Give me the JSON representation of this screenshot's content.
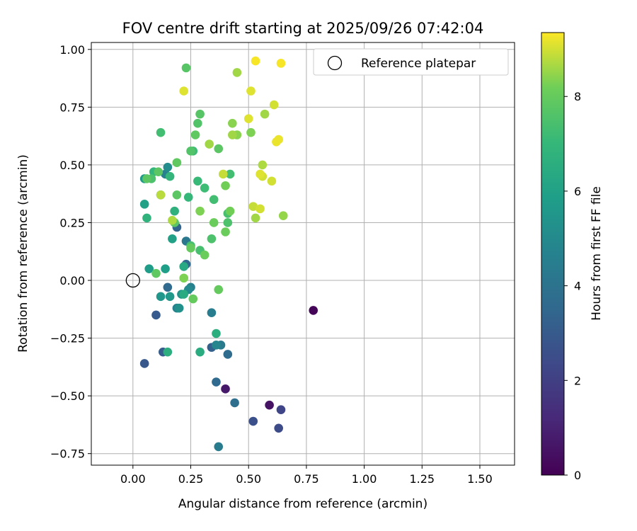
{
  "chart_data": {
    "type": "scatter",
    "title": "FOV centre drift starting at 2025/09/26 07:42:04",
    "xlabel": "Angular distance from reference (arcmin)",
    "ylabel": "Rotation from reference (arcmin)",
    "xlim": [
      -0.18,
      1.65
    ],
    "ylim": [
      -0.8,
      1.03
    ],
    "xticks": [
      0.0,
      0.25,
      0.5,
      0.75,
      1.0,
      1.25,
      1.5
    ],
    "xtick_labels": [
      "0.00",
      "0.25",
      "0.50",
      "0.75",
      "1.00",
      "1.25",
      "1.50"
    ],
    "yticks": [
      -0.75,
      -0.5,
      -0.25,
      0.0,
      0.25,
      0.5,
      0.75,
      1.0
    ],
    "ytick_labels": [
      "−0.75",
      "−0.50",
      "−0.25",
      "0.00",
      "0.25",
      "0.50",
      "0.75",
      "1.00"
    ],
    "grid": true,
    "legend": {
      "position": "top-right",
      "entries": [
        "Reference platepar"
      ]
    },
    "reference_point": {
      "x": 0.0,
      "y": 0.0,
      "label": "Reference platepar"
    },
    "colorbar": {
      "label": "Hours from first FF file",
      "colormap": "viridis",
      "range": [
        0,
        9.35
      ],
      "ticks": [
        0,
        2,
        4,
        6,
        8
      ],
      "tick_labels": [
        "0",
        "2",
        "4",
        "6",
        "8"
      ]
    },
    "points": [
      {
        "x": 0.78,
        "y": -0.13,
        "c": 0.1
      },
      {
        "x": 0.59,
        "y": -0.54,
        "c": 0.5
      },
      {
        "x": 0.4,
        "y": -0.47,
        "c": 0.7
      },
      {
        "x": 0.64,
        "y": -0.56,
        "c": 2.2
      },
      {
        "x": 0.63,
        "y": -0.64,
        "c": 2.4
      },
      {
        "x": 0.52,
        "y": -0.61,
        "c": 2.6
      },
      {
        "x": 0.05,
        "y": -0.36,
        "c": 2.9
      },
      {
        "x": 0.1,
        "y": -0.15,
        "c": 3.0
      },
      {
        "x": 0.13,
        "y": -0.31,
        "c": 3.1
      },
      {
        "x": 0.34,
        "y": -0.29,
        "c": 3.2
      },
      {
        "x": 0.19,
        "y": 0.23,
        "c": 3.4
      },
      {
        "x": 0.23,
        "y": 0.07,
        "c": 3.5
      },
      {
        "x": 0.15,
        "y": -0.03,
        "c": 3.6
      },
      {
        "x": 0.36,
        "y": -0.44,
        "c": 3.6
      },
      {
        "x": 0.41,
        "y": -0.32,
        "c": 3.7
      },
      {
        "x": 0.44,
        "y": -0.53,
        "c": 3.8
      },
      {
        "x": 0.23,
        "y": 0.17,
        "c": 4.2
      },
      {
        "x": 0.38,
        "y": -0.28,
        "c": 4.3
      },
      {
        "x": 0.37,
        "y": -0.72,
        "c": 4.4
      },
      {
        "x": 0.34,
        "y": -0.14,
        "c": 4.5
      },
      {
        "x": 0.14,
        "y": 0.46,
        "c": 4.6
      },
      {
        "x": 0.25,
        "y": -0.03,
        "c": 4.6
      },
      {
        "x": 0.19,
        "y": -0.12,
        "c": 4.7
      },
      {
        "x": 0.36,
        "y": -0.28,
        "c": 4.9
      },
      {
        "x": 0.24,
        "y": -0.04,
        "c": 5.0
      },
      {
        "x": 0.15,
        "y": 0.49,
        "c": 5.1
      },
      {
        "x": 0.2,
        "y": -0.12,
        "c": 5.3
      },
      {
        "x": 0.21,
        "y": -0.06,
        "c": 5.4
      },
      {
        "x": 0.12,
        "y": -0.07,
        "c": 5.5
      },
      {
        "x": 0.16,
        "y": -0.07,
        "c": 5.6
      },
      {
        "x": 0.05,
        "y": 0.44,
        "c": 5.7
      },
      {
        "x": 0.12,
        "y": 0.37,
        "c": 5.8
      },
      {
        "x": 0.07,
        "y": 0.05,
        "c": 5.8
      },
      {
        "x": 0.14,
        "y": 0.05,
        "c": 5.9
      },
      {
        "x": 0.17,
        "y": 0.18,
        "c": 6.0
      },
      {
        "x": 0.05,
        "y": 0.33,
        "c": 6.0
      },
      {
        "x": 0.22,
        "y": 0.06,
        "c": 6.3
      },
      {
        "x": 0.22,
        "y": -0.06,
        "c": 6.4
      },
      {
        "x": 0.29,
        "y": -0.31,
        "c": 6.5
      },
      {
        "x": 0.15,
        "y": -0.31,
        "c": 6.6
      },
      {
        "x": 0.36,
        "y": -0.23,
        "c": 6.6
      },
      {
        "x": 0.18,
        "y": 0.3,
        "c": 6.7
      },
      {
        "x": 0.06,
        "y": 0.27,
        "c": 6.8
      },
      {
        "x": 0.16,
        "y": 0.45,
        "c": 6.9
      },
      {
        "x": 0.09,
        "y": 0.47,
        "c": 6.9
      },
      {
        "x": 0.24,
        "y": 0.36,
        "c": 7.0
      },
      {
        "x": 0.28,
        "y": 0.43,
        "c": 7.1
      },
      {
        "x": 0.31,
        "y": 0.4,
        "c": 7.2
      },
      {
        "x": 0.26,
        "y": 0.56,
        "c": 7.2
      },
      {
        "x": 0.35,
        "y": 0.35,
        "c": 7.3
      },
      {
        "x": 0.42,
        "y": 0.46,
        "c": 7.3
      },
      {
        "x": 0.12,
        "y": 0.64,
        "c": 7.3
      },
      {
        "x": 0.25,
        "y": 0.15,
        "c": 7.4
      },
      {
        "x": 0.29,
        "y": 0.13,
        "c": 7.4
      },
      {
        "x": 0.41,
        "y": 0.29,
        "c": 7.4
      },
      {
        "x": 0.41,
        "y": 0.25,
        "c": 7.5
      },
      {
        "x": 0.08,
        "y": 0.44,
        "c": 7.5
      },
      {
        "x": 0.34,
        "y": 0.18,
        "c": 7.5
      },
      {
        "x": 0.25,
        "y": 0.56,
        "c": 7.6
      },
      {
        "x": 0.28,
        "y": 0.68,
        "c": 7.6
      },
      {
        "x": 0.29,
        "y": 0.72,
        "c": 7.7
      },
      {
        "x": 0.23,
        "y": 0.92,
        "c": 7.7
      },
      {
        "x": 0.19,
        "y": 0.37,
        "c": 7.8
      },
      {
        "x": 0.18,
        "y": 0.25,
        "c": 7.8
      },
      {
        "x": 0.06,
        "y": 0.44,
        "c": 7.8
      },
      {
        "x": 0.11,
        "y": 0.47,
        "c": 7.8
      },
      {
        "x": 0.37,
        "y": 0.57,
        "c": 7.8
      },
      {
        "x": 0.27,
        "y": 0.63,
        "c": 7.9
      },
      {
        "x": 0.19,
        "y": 0.51,
        "c": 7.9
      },
      {
        "x": 0.1,
        "y": 0.03,
        "c": 7.9
      },
      {
        "x": 0.25,
        "y": 0.14,
        "c": 8.0
      },
      {
        "x": 0.26,
        "y": -0.08,
        "c": 8.0
      },
      {
        "x": 0.37,
        "y": -0.04,
        "c": 8.0
      },
      {
        "x": 0.31,
        "y": 0.11,
        "c": 8.1
      },
      {
        "x": 0.4,
        "y": 0.21,
        "c": 8.1
      },
      {
        "x": 0.35,
        "y": 0.25,
        "c": 8.1
      },
      {
        "x": 0.4,
        "y": 0.41,
        "c": 8.2
      },
      {
        "x": 0.42,
        "y": 0.3,
        "c": 8.2
      },
      {
        "x": 0.29,
        "y": 0.3,
        "c": 8.3
      },
      {
        "x": 0.22,
        "y": 0.01,
        "c": 8.3
      },
      {
        "x": 0.51,
        "y": 0.64,
        "c": 8.3
      },
      {
        "x": 0.43,
        "y": 0.68,
        "c": 8.4
      },
      {
        "x": 0.45,
        "y": 0.63,
        "c": 8.4
      },
      {
        "x": 0.65,
        "y": 0.28,
        "c": 8.5
      },
      {
        "x": 0.57,
        "y": 0.72,
        "c": 8.6
      },
      {
        "x": 0.43,
        "y": 0.63,
        "c": 8.6
      },
      {
        "x": 0.33,
        "y": 0.59,
        "c": 8.6
      },
      {
        "x": 0.53,
        "y": 0.27,
        "c": 8.6
      },
      {
        "x": 0.45,
        "y": 0.9,
        "c": 8.6
      },
      {
        "x": 0.56,
        "y": 0.5,
        "c": 8.7
      },
      {
        "x": 0.17,
        "y": 0.26,
        "c": 8.7
      },
      {
        "x": 0.12,
        "y": 0.37,
        "c": 8.8
      },
      {
        "x": 0.39,
        "y": 0.46,
        "c": 8.9
      },
      {
        "x": 0.52,
        "y": 0.32,
        "c": 8.9
      },
      {
        "x": 0.56,
        "y": 0.45,
        "c": 9.0
      },
      {
        "x": 0.6,
        "y": 0.43,
        "c": 9.0
      },
      {
        "x": 0.55,
        "y": 0.31,
        "c": 9.0
      },
      {
        "x": 0.61,
        "y": 0.76,
        "c": 9.0
      },
      {
        "x": 0.22,
        "y": 0.82,
        "c": 9.1
      },
      {
        "x": 0.5,
        "y": 0.7,
        "c": 9.1
      },
      {
        "x": 0.51,
        "y": 0.82,
        "c": 9.1
      },
      {
        "x": 0.55,
        "y": 0.46,
        "c": 9.1
      },
      {
        "x": 0.62,
        "y": 0.6,
        "c": 9.2
      },
      {
        "x": 0.63,
        "y": 0.61,
        "c": 9.2
      },
      {
        "x": 0.53,
        "y": 0.95,
        "c": 9.3
      },
      {
        "x": 0.64,
        "y": 0.94,
        "c": 9.3
      }
    ]
  }
}
